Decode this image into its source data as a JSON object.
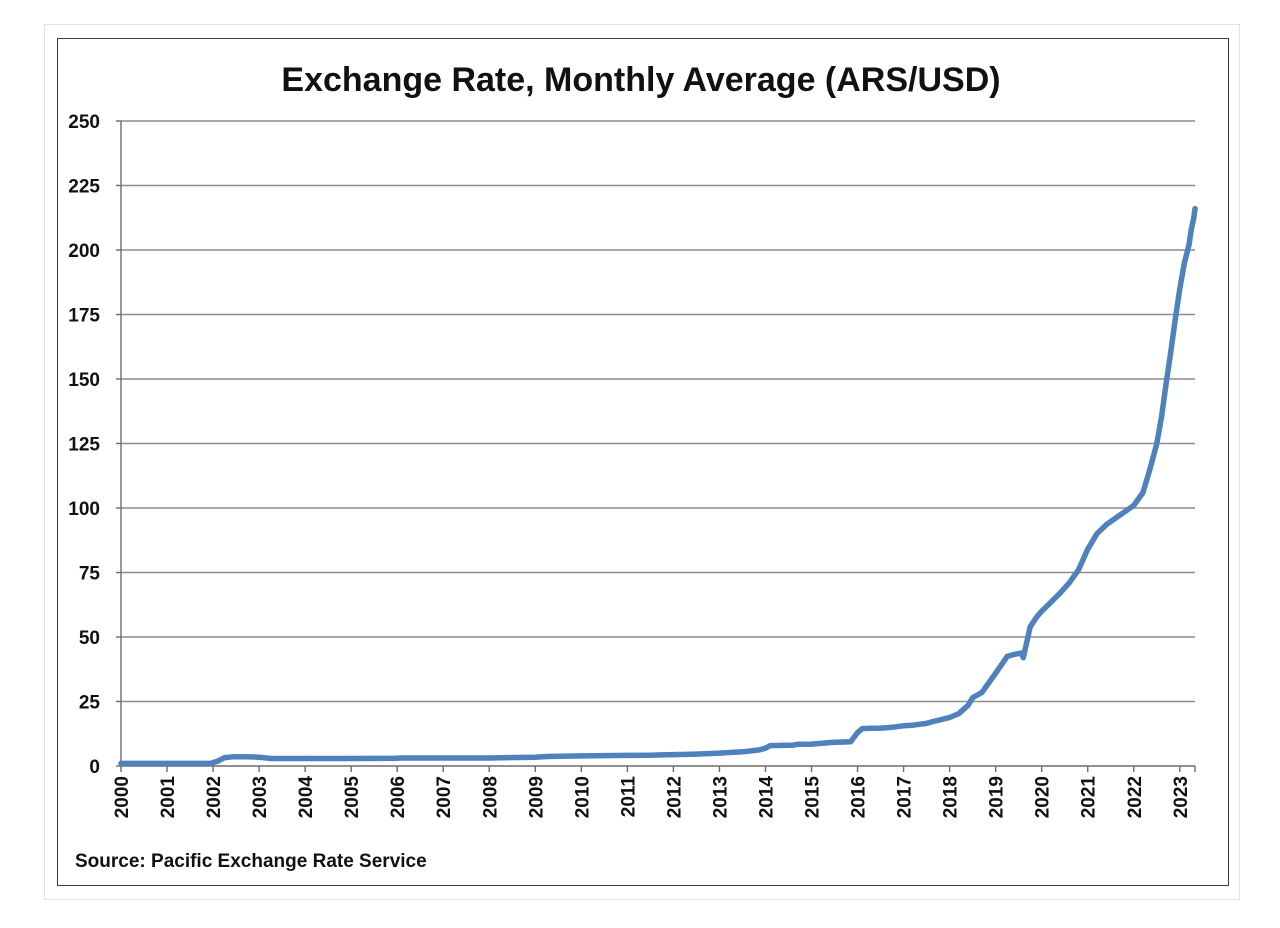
{
  "chart_data": {
    "type": "line",
    "title": "Exchange Rate, Monthly Average (ARS/USD)",
    "xlabel": "",
    "ylabel": "",
    "ylim": [
      0,
      250
    ],
    "yticks": [
      0,
      25,
      50,
      75,
      100,
      125,
      150,
      175,
      200,
      225,
      250
    ],
    "xlim": [
      2000,
      2023.33
    ],
    "xticks": [
      "2000",
      "2001",
      "2002",
      "2003",
      "2004",
      "2005",
      "2006",
      "2007",
      "2008",
      "2009",
      "2010",
      "2011",
      "2012",
      "2013",
      "2014",
      "2015",
      "2016",
      "2017",
      "2018",
      "2019",
      "2020",
      "2021",
      "2022",
      "2023"
    ],
    "grid": true,
    "legend": "none",
    "color": "#4f81bd",
    "series": [
      {
        "name": "ARS/USD",
        "x": [
          2000.0,
          2001.0,
          2001.95,
          2002.1,
          2002.25,
          2002.45,
          2002.7,
          2003.0,
          2003.25,
          2004.0,
          2005.0,
          2005.95,
          2006.1,
          2007.0,
          2008.0,
          2009.0,
          2009.25,
          2010.0,
          2011.0,
          2011.5,
          2011.75,
          2012.0,
          2012.5,
          2013.0,
          2013.5,
          2013.85,
          2014.0,
          2014.1,
          2014.6,
          2014.7,
          2015.0,
          2015.3,
          2015.4,
          2015.85,
          2016.0,
          2016.1,
          2016.3,
          2016.5,
          2016.75,
          2017.0,
          2017.2,
          2017.5,
          2017.65,
          2018.0,
          2018.2,
          2018.4,
          2018.5,
          2018.7,
          2019.0,
          2019.25,
          2019.4,
          2019.55,
          2019.6,
          2019.75,
          2019.9,
          2020.0,
          2020.2,
          2020.4,
          2020.6,
          2020.8,
          2021.0,
          2021.2,
          2021.4,
          2021.6,
          2021.8,
          2022.0,
          2022.2,
          2022.35,
          2022.5,
          2022.6,
          2022.7,
          2022.8,
          2022.9,
          2023.0,
          2023.1,
          2023.2,
          2023.25,
          2023.3,
          2023.33
        ],
        "values": [
          1.0,
          1.0,
          1.0,
          1.9,
          3.2,
          3.6,
          3.6,
          3.4,
          2.9,
          2.9,
          2.9,
          3.0,
          3.1,
          3.1,
          3.1,
          3.4,
          3.7,
          3.9,
          4.1,
          4.2,
          4.3,
          4.4,
          4.6,
          5.0,
          5.5,
          6.2,
          6.9,
          7.9,
          8.1,
          8.4,
          8.5,
          8.9,
          9.1,
          9.4,
          13.0,
          14.5,
          14.6,
          14.7,
          15.0,
          15.6,
          15.8,
          16.5,
          17.3,
          18.8,
          20.3,
          23.5,
          26.5,
          28.5,
          36.0,
          42.5,
          43.2,
          43.8,
          42.0,
          54.0,
          58.0,
          60.0,
          63.5,
          67.0,
          71.0,
          76.0,
          84.0,
          90.0,
          93.5,
          96.0,
          98.5,
          101.0,
          106.0,
          115.0,
          125.0,
          135.0,
          148.0,
          160.0,
          173.0,
          185.0,
          195.0,
          202.0,
          208.0,
          212.0,
          216.0
        ]
      }
    ]
  },
  "source_note": "Source: Pacific Exchange Rate Service"
}
